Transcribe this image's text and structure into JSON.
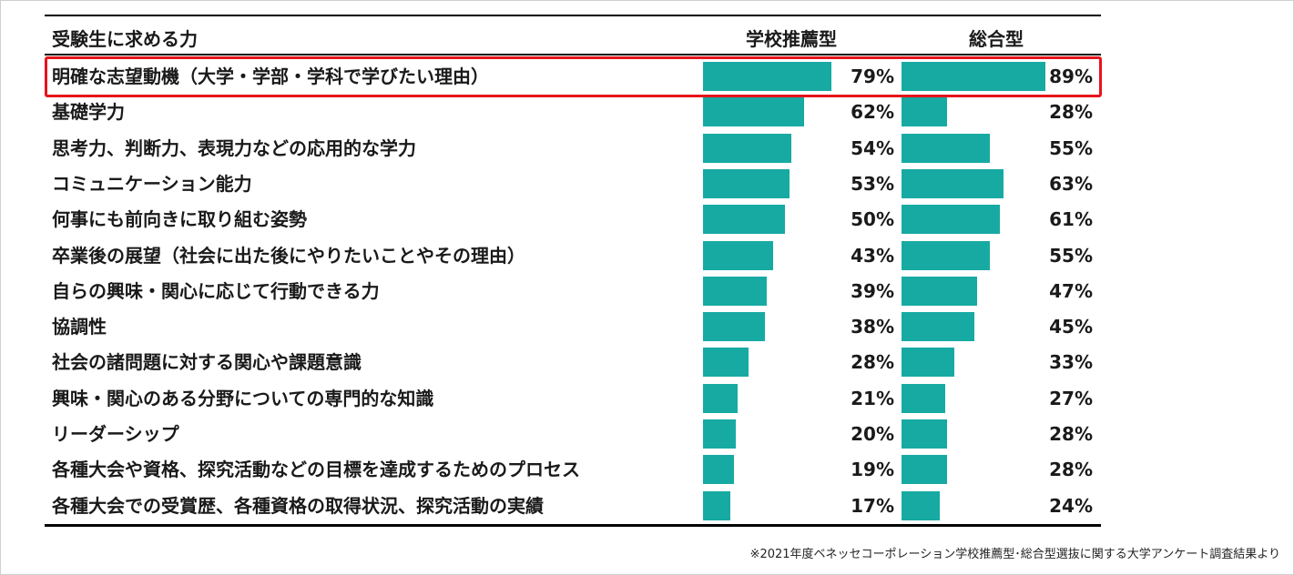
{
  "chart_data": {
    "type": "bar",
    "orientation": "horizontal",
    "header": {
      "label_column": "受験生に求める力",
      "series_names": [
        "学校推薦型",
        "総合型"
      ]
    },
    "categories": [
      "明確な志望動機（大学・学部・学科で学びたい理由）",
      "基礎学力",
      "思考力、判断力、表現力などの応用的な学力",
      "コミュニケーション能力",
      "何事にも前向きに取り組む姿勢",
      "卒業後の展望（社会に出た後にやりたいことやその理由）",
      "自らの興味・関心に応じて行動できる力",
      "協調性",
      "社会の諸問題に対する関心や課題意識",
      "興味・関心のある分野についての専門的な知識",
      "リーダーシップ",
      "各種大会や資格、探究活動などの目標を達成するためのプロセス",
      "各種大会での受賞歴、各種資格の取得状況、探究活動の実績"
    ],
    "series": [
      {
        "name": "学校推薦型",
        "values": [
          79,
          62,
          54,
          53,
          50,
          43,
          39,
          38,
          28,
          21,
          20,
          19,
          17
        ]
      },
      {
        "name": "総合型",
        "values": [
          89,
          28,
          55,
          63,
          61,
          55,
          47,
          45,
          33,
          27,
          28,
          28,
          24
        ]
      }
    ],
    "unit": "%",
    "xlim": [
      0,
      100
    ],
    "highlighted_category_index": 0,
    "bar_color": "#17aaa3",
    "highlight_color": "#e8141b"
  },
  "source_note": "※2021年度ベネッセコーポレーション学校推薦型･総合型選抜に関する大学アンケート調査結果より"
}
